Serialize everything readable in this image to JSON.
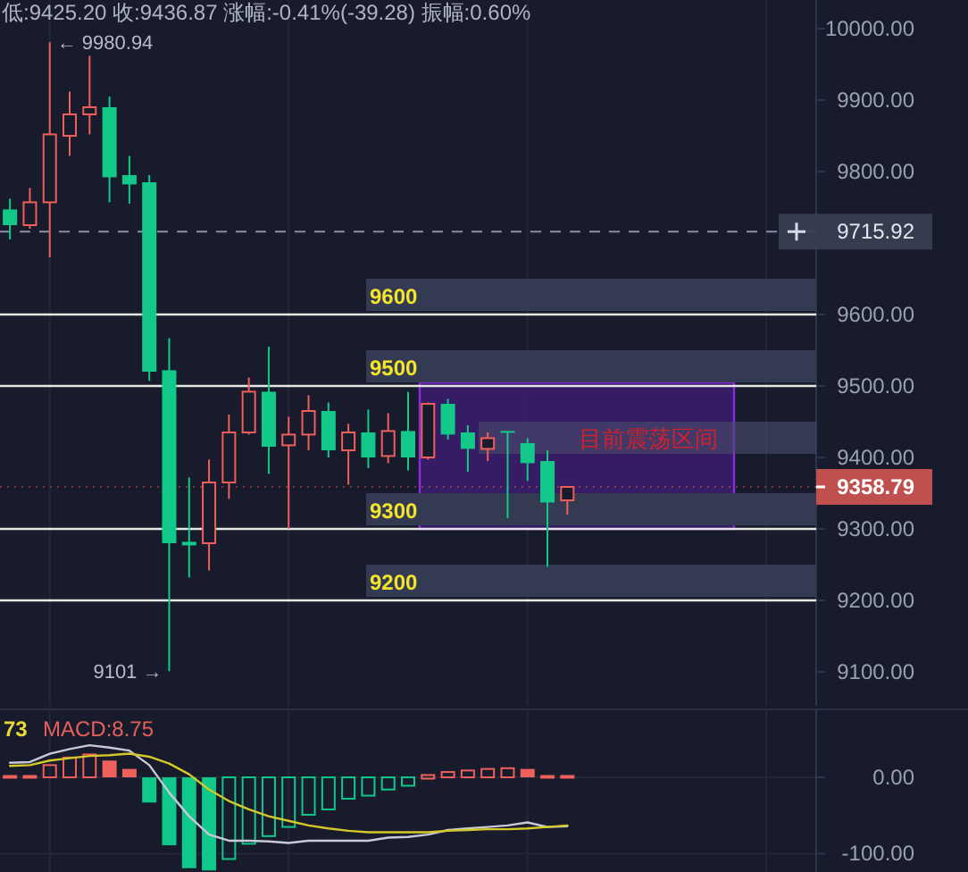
{
  "chart_data": [
    {
      "type": "candlestick",
      "title": "低:9425.20 收:9436.87 涨幅:-0.41%(-39.28) 振幅:0.60%",
      "categories": [
        null,
        null,
        null,
        null,
        null,
        null,
        null,
        null,
        null,
        null,
        null,
        null,
        null,
        null,
        null,
        null,
        null,
        null,
        null,
        null,
        null,
        null,
        null,
        null,
        null,
        null,
        null,
        null,
        null,
        null,
        null,
        null,
        null,
        null,
        null,
        null,
        null,
        null,
        null,
        null,
        null
      ],
      "ohlc": [
        [
          9747,
          9762,
          9705,
          9725
        ],
        [
          9725,
          9777,
          9720,
          9757
        ],
        [
          9757,
          9980.94,
          9680,
          9852
        ],
        [
          9850,
          9912,
          9822,
          9880
        ],
        [
          9880,
          9962,
          9852,
          9890
        ],
        [
          9890,
          9905,
          9757,
          9792
        ],
        [
          9795,
          9822,
          9755,
          9782
        ],
        [
          9785,
          9795,
          9507,
          9520
        ],
        [
          9522,
          9567,
          9101,
          9280
        ],
        [
          9282,
          9372,
          9232,
          9277
        ],
        [
          9280,
          9397,
          9242,
          9365
        ],
        [
          9365,
          9460,
          9342,
          9435
        ],
        [
          9435,
          9512,
          9432,
          9492
        ],
        [
          9492,
          9555,
          9377,
          9415
        ],
        [
          9417,
          9457,
          9300,
          9432
        ],
        [
          9432,
          9487,
          9410,
          9465
        ],
        [
          9465,
          9477,
          9400,
          9410
        ],
        [
          9410,
          9447,
          9362,
          9435
        ],
        [
          9435,
          9467,
          9385,
          9400
        ],
        [
          9402,
          9462,
          9392,
          9437
        ],
        [
          9437,
          9492,
          9382,
          9400
        ],
        [
          9400,
          9477,
          9397,
          9475
        ],
        [
          9475,
          9482,
          9425,
          9432
        ],
        [
          9435,
          9445,
          9380,
          9412
        ],
        [
          9412,
          9435,
          9395,
          9427
        ],
        [
          9437,
          9437,
          9315,
          9435
        ],
        [
          9420,
          9427,
          9367,
          9392
        ],
        [
          9395,
          9410,
          9247,
          9337
        ],
        [
          9340,
          9358.79,
          9320,
          9358.79
        ],
        null,
        null,
        null,
        null,
        null,
        null,
        null,
        null,
        null,
        null,
        null,
        null
      ],
      "ylim": [
        9052.5,
        10040
      ],
      "yticks": [
        {
          "value": 9100,
          "label": "9100.00"
        },
        {
          "value": 9200,
          "label": "9200.00"
        },
        {
          "value": 9300,
          "label": "9300.00"
        },
        {
          "value": 9400,
          "label": "9400.00"
        },
        {
          "value": 9500,
          "label": "9500.00"
        },
        {
          "value": 9600,
          "label": "9600.00"
        },
        {
          "value": 9700,
          "label": null
        },
        {
          "value": 9800,
          "label": "9800.00"
        },
        {
          "value": 9900,
          "label": "9900.00"
        },
        {
          "value": 10000,
          "label": "10000.00"
        }
      ],
      "grid": "x",
      "ref_lines": [
        {
          "axis": "y",
          "value": 9600,
          "label": "9600",
          "color": "#e6e6e6",
          "line_style": "solid"
        },
        {
          "axis": "y",
          "value": 9500,
          "label": "9500",
          "color": "#e6e6e6",
          "line_style": "solid"
        },
        {
          "axis": "y",
          "value": 9300,
          "label": "9300",
          "color": "#e6e6e6",
          "line_style": "solid"
        },
        {
          "axis": "y",
          "value": 9200,
          "label": "9200",
          "color": "#e6e6e6",
          "line_style": "solid"
        },
        {
          "axis": "y",
          "value": 9715.92,
          "label": "9715.92",
          "color": "#8b90a3",
          "line_style": "dashed"
        },
        {
          "axis": "y",
          "value": 9358.79,
          "label": "9358.79",
          "color": "#c0504d",
          "line_style": "dotted"
        }
      ],
      "bands": [
        {
          "axis": "y",
          "from": 9300,
          "to": 9505,
          "label": "目前震荡区间",
          "color": "#3a1c6c"
        }
      ],
      "annotations": [
        "← 9980.94",
        "9101 →"
      ]
    },
    {
      "type": "bar",
      "categories": [
        null,
        null,
        null,
        null,
        null,
        null,
        null,
        null,
        null,
        null,
        null,
        null,
        null,
        null,
        null,
        null,
        null,
        null,
        null,
        null,
        null,
        null,
        null,
        null,
        null,
        null,
        null,
        null,
        null,
        null,
        null,
        null,
        null,
        null,
        null,
        null,
        null,
        null,
        null,
        null,
        null
      ],
      "series": [
        {
          "type": "bar",
          "colors": [
            "#f0605a",
            "#f0605a",
            "#f0605a",
            "#f0605a",
            "#f0605a",
            "#f0605a",
            "#f0605a",
            "#10c88a",
            "#10c88a",
            "#10c88a",
            "#10c88a",
            "#10c88a",
            "#10c88a",
            "#10c88a",
            "#10c88a",
            "#10c88a",
            "#10c88a",
            "#10c88a",
            "#10c88a",
            "#10c88a",
            "#10c88a",
            "#f0605a",
            "#f0605a",
            "#f0605a",
            "#f0605a",
            "#f0605a",
            "#f0605a",
            "#f0605a",
            "#f0605a",
            null,
            null,
            null,
            null,
            null,
            null,
            null,
            null,
            null,
            null,
            null,
            null
          ],
          "values": [
            3,
            3,
            16,
            26,
            30,
            22,
            11,
            -33,
            -89,
            -119,
            -122,
            -107,
            -87,
            -77,
            -65,
            -49,
            -42,
            -28,
            -24,
            -16,
            -11,
            3,
            7,
            9,
            11,
            12,
            11,
            3,
            3,
            null,
            null,
            null,
            null,
            null,
            null,
            null,
            null,
            null,
            null,
            null,
            null
          ]
        },
        {
          "type": "line",
          "color": "#c8c9d6",
          "values": [
            19,
            20,
            31,
            37,
            42,
            39,
            35,
            16,
            -20,
            -51,
            -75,
            -83,
            -83,
            -84,
            -86,
            -83,
            -83,
            -83,
            -83,
            -79,
            -78,
            -75,
            -69,
            -67,
            -65,
            -63,
            -59,
            -65,
            -64,
            null,
            null,
            null,
            null,
            null,
            null,
            null,
            null,
            null,
            null,
            null,
            null
          ]
        },
        {
          "type": "line",
          "color": "#d4c928",
          "values": [
            15,
            16,
            22,
            25,
            28,
            29,
            31,
            27,
            18,
            4,
            -16,
            -31,
            -42,
            -51,
            -57,
            -63,
            -67,
            -70,
            -72,
            -72,
            -72,
            -72,
            -70,
            -69,
            -68,
            -68,
            -67,
            -65,
            -63,
            null,
            null,
            null,
            null,
            null,
            null,
            null,
            null,
            null,
            null,
            null,
            null
          ]
        }
      ],
      "ylim": [
        -124,
        89
      ],
      "yticks": [
        {
          "value": -100,
          "label": "-100.00"
        },
        {
          "value": 0,
          "label": "0.00"
        }
      ],
      "grid": true,
      "annotations": [
        "73",
        "MACD:8.75"
      ]
    }
  ]
}
